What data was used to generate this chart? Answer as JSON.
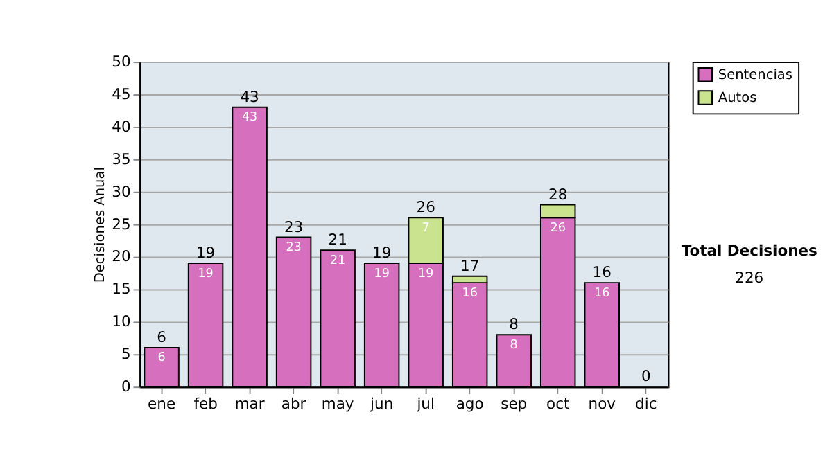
{
  "chart_data": {
    "type": "bar",
    "stacked": true,
    "ylabel": "Decisiones Anual",
    "categories": [
      "ene",
      "feb",
      "mar",
      "abr",
      "may",
      "jun",
      "jul",
      "ago",
      "sep",
      "oct",
      "nov",
      "dic"
    ],
    "series": [
      {
        "name": "Sentencias",
        "color": "#d66fbd",
        "values": [
          6,
          19,
          43,
          23,
          21,
          19,
          19,
          16,
          8,
          26,
          16,
          0
        ],
        "value_labels": [
          "6",
          "19",
          "43",
          "23",
          "21",
          "19",
          "19",
          "16",
          "8",
          "26",
          "16",
          null
        ]
      },
      {
        "name": "Autos",
        "color": "#c9e38f",
        "values": [
          0,
          0,
          0,
          0,
          0,
          0,
          7,
          1,
          0,
          2,
          0,
          0
        ],
        "value_labels": [
          null,
          null,
          null,
          null,
          null,
          null,
          "7",
          null,
          null,
          null,
          null,
          null
        ]
      }
    ],
    "totals": [
      "6",
      "19",
      "43",
      "23",
      "21",
      "19",
      "26",
      "17",
      "8",
      "28",
      "16",
      "0"
    ],
    "ylim": [
      0,
      50
    ],
    "yticks": [
      0,
      5,
      10,
      15,
      20,
      25,
      30,
      35,
      40,
      45,
      50
    ],
    "grid": "y",
    "legend": "right",
    "annotations": [
      "Total Decisiones",
      "226"
    ]
  }
}
